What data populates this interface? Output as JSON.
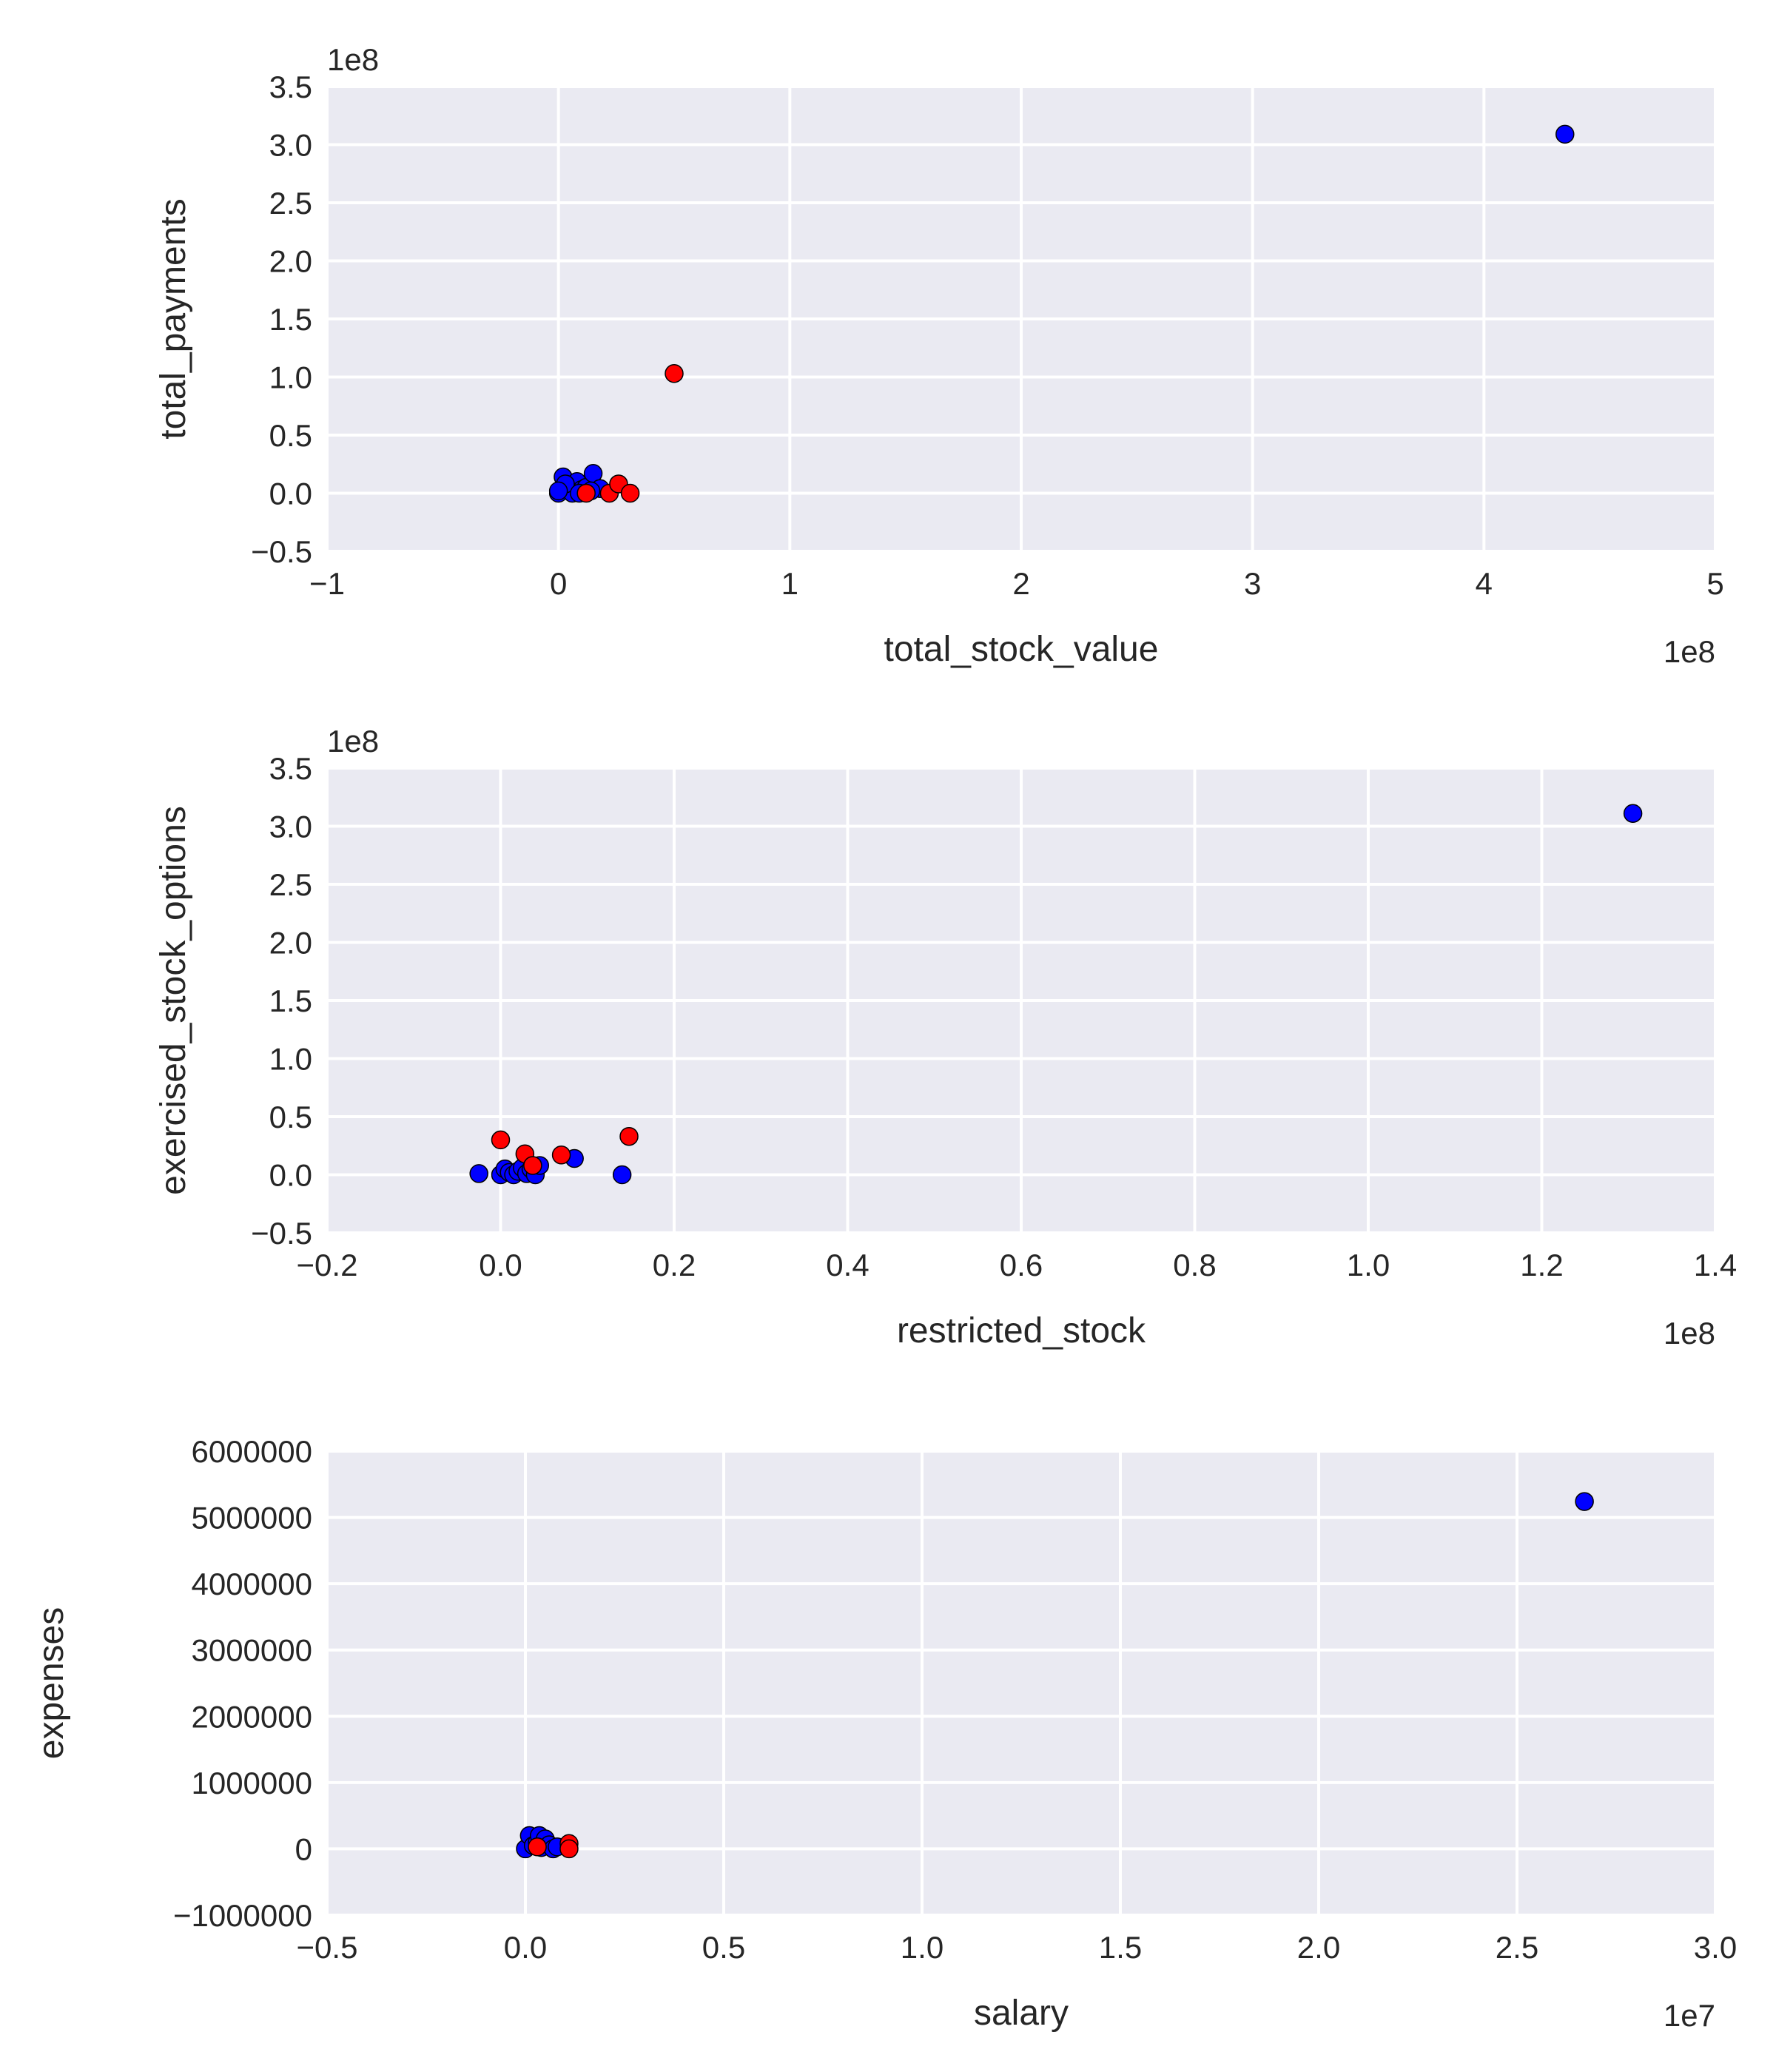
{
  "colors": {
    "background": "#eaeaf2",
    "grid": "#ffffff",
    "poi": "#ff0000",
    "non_poi": "#0000ff",
    "edge": "#000000",
    "text": "#262626"
  },
  "chart_data": [
    {
      "type": "scatter",
      "xlabel": "total_stock_value",
      "ylabel": "total_payments",
      "x_offset_label": "1e8",
      "y_offset_label": "1e8",
      "xlim": [
        -1,
        5
      ],
      "ylim": [
        -0.5,
        3.5
      ],
      "x_ticks": [
        -1,
        0,
        1,
        2,
        3,
        4,
        5
      ],
      "x_tick_labels": [
        "−1",
        "0",
        "1",
        "2",
        "3",
        "4",
        "5"
      ],
      "y_ticks": [
        -0.5,
        0.0,
        0.5,
        1.0,
        1.5,
        2.0,
        2.5,
        3.0,
        3.5
      ],
      "y_tick_labels": [
        "−0.5",
        "0.0",
        "0.5",
        "1.0",
        "1.5",
        "2.0",
        "2.5",
        "3.0",
        "3.5"
      ],
      "grid": true,
      "series": [
        {
          "color": "#0000ff",
          "points": [
            [
              0.0,
              0.0
            ],
            [
              0.02,
              0.14
            ],
            [
              0.05,
              0.05
            ],
            [
              0.08,
              0.1
            ],
            [
              0.1,
              0.03
            ],
            [
              0.06,
              0.0
            ],
            [
              0.12,
              0.05
            ],
            [
              0.15,
              0.17
            ],
            [
              0.18,
              0.04
            ],
            [
              0.03,
              0.08
            ],
            [
              0.09,
              0.0
            ],
            [
              0.14,
              0.02
            ],
            [
              0.0,
              0.02
            ],
            [
              4.35,
              3.09
            ]
          ]
        },
        {
          "color": "#ff0000",
          "points": [
            [
              0.12,
              0.0
            ],
            [
              0.22,
              0.0
            ],
            [
              0.26,
              0.08
            ],
            [
              0.31,
              0.0
            ],
            [
              0.5,
              1.03
            ]
          ]
        }
      ]
    },
    {
      "type": "scatter",
      "xlabel": "restricted_stock",
      "ylabel": "exercised_stock_options",
      "x_offset_label": "1e8",
      "y_offset_label": "1e8",
      "xlim": [
        -0.2,
        1.4
      ],
      "ylim": [
        -0.5,
        3.5
      ],
      "x_ticks": [
        -0.2,
        0.0,
        0.2,
        0.4,
        0.6,
        0.8,
        1.0,
        1.2,
        1.4
      ],
      "x_tick_labels": [
        "−0.2",
        "0.0",
        "0.2",
        "0.4",
        "0.6",
        "0.8",
        "1.0",
        "1.2",
        "1.4"
      ],
      "y_ticks": [
        -0.5,
        0.0,
        0.5,
        1.0,
        1.5,
        2.0,
        2.5,
        3.0,
        3.5
      ],
      "y_tick_labels": [
        "−0.5",
        "0.0",
        "0.5",
        "1.0",
        "1.5",
        "2.0",
        "2.5",
        "3.0",
        "3.5"
      ],
      "grid": true,
      "series": [
        {
          "color": "#0000ff",
          "points": [
            [
              -0.025,
              0.01
            ],
            [
              0.0,
              0.0
            ],
            [
              0.005,
              0.05
            ],
            [
              0.01,
              0.02
            ],
            [
              0.015,
              0.0
            ],
            [
              0.02,
              0.03
            ],
            [
              0.025,
              0.06
            ],
            [
              0.03,
              0.01
            ],
            [
              0.035,
              0.05
            ],
            [
              0.04,
              0.0
            ],
            [
              0.045,
              0.08
            ],
            [
              0.085,
              0.14
            ],
            [
              0.14,
              0.0
            ],
            [
              1.305,
              3.11
            ]
          ]
        },
        {
          "color": "#ff0000",
          "points": [
            [
              0.0,
              0.3
            ],
            [
              0.028,
              0.18
            ],
            [
              0.037,
              0.08
            ],
            [
              0.07,
              0.17
            ],
            [
              0.148,
              0.33
            ]
          ]
        }
      ]
    },
    {
      "type": "scatter",
      "xlabel": "salary",
      "ylabel": "expenses",
      "x_offset_label": "1e7",
      "xlim": [
        -0.5,
        3.0
      ],
      "ylim": [
        -1000000,
        6000000
      ],
      "x_ticks": [
        -0.5,
        0.0,
        0.5,
        1.0,
        1.5,
        2.0,
        2.5,
        3.0
      ],
      "x_tick_labels": [
        "−0.5",
        "0.0",
        "0.5",
        "1.0",
        "1.5",
        "2.0",
        "2.5",
        "3.0"
      ],
      "y_ticks": [
        -1000000,
        0,
        1000000,
        2000000,
        3000000,
        4000000,
        5000000,
        6000000
      ],
      "y_tick_labels": [
        "−1000000",
        "0",
        "1000000",
        "2000000",
        "3000000",
        "4000000",
        "5000000",
        "6000000"
      ],
      "grid": true,
      "series": [
        {
          "color": "#0000ff",
          "points": [
            [
              0.0,
              0.0
            ],
            [
              0.01,
              200000
            ],
            [
              0.02,
              50000
            ],
            [
              0.03,
              100000
            ],
            [
              0.035,
              200000
            ],
            [
              0.04,
              20000
            ],
            [
              0.05,
              150000
            ],
            [
              0.06,
              60000
            ],
            [
              0.07,
              0
            ],
            [
              0.08,
              30000
            ],
            [
              2.67,
              5240000
            ]
          ]
        },
        {
          "color": "#ff0000",
          "points": [
            [
              0.03,
              30000
            ],
            [
              0.11,
              80000
            ],
            [
              0.11,
              0
            ]
          ]
        }
      ]
    }
  ]
}
